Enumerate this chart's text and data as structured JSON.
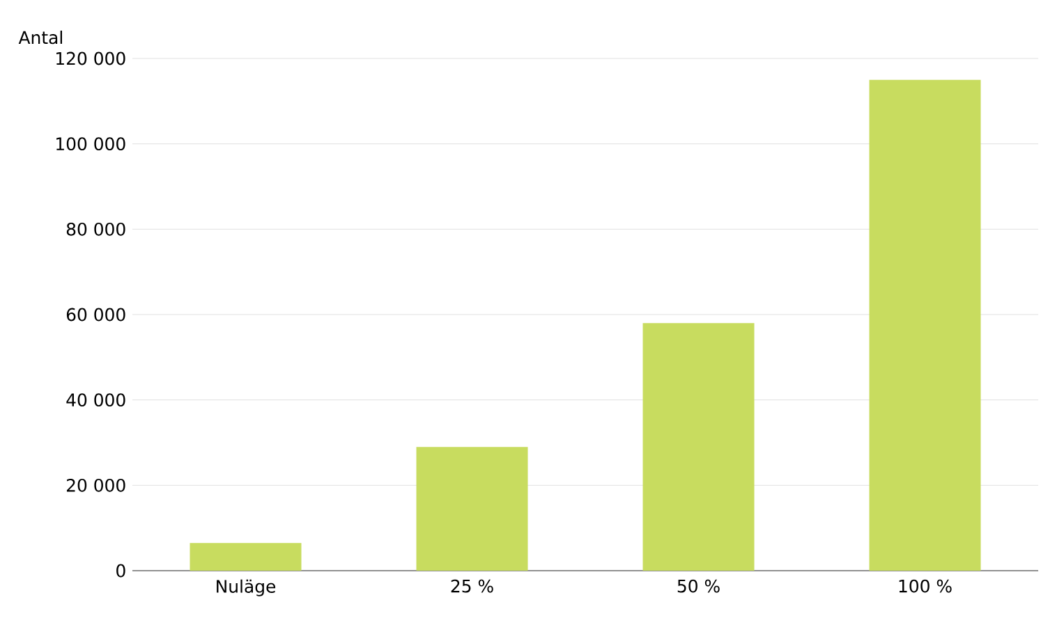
{
  "chart_data": {
    "type": "bar",
    "ylabel": "Antal",
    "categories": [
      "Nuläge",
      "25 %",
      "50 %",
      "100 %"
    ],
    "values": [
      6500,
      29000,
      58000,
      115000
    ],
    "color": "#c8dc5f",
    "ylim": [
      0,
      120000
    ],
    "yticks": [
      {
        "value": 0,
        "label": "0"
      },
      {
        "value": 20000,
        "label": "20 000"
      },
      {
        "value": 40000,
        "label": "40 000"
      },
      {
        "value": 60000,
        "label": "60 000"
      },
      {
        "value": 80000,
        "label": "80 000"
      },
      {
        "value": 100000,
        "label": "100 000"
      },
      {
        "value": 120000,
        "label": "120 000"
      }
    ],
    "grid": "y"
  }
}
